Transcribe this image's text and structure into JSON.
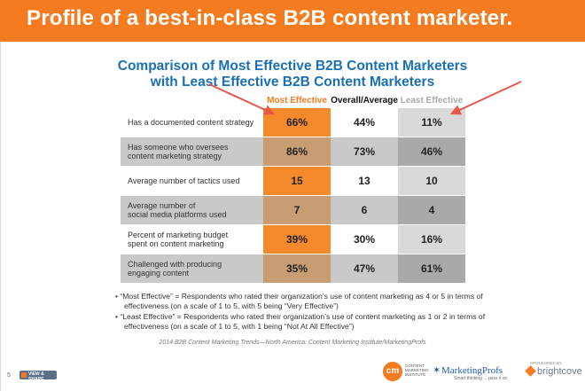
{
  "header": {
    "title": "Profile of a best-in-class B2B content marketer."
  },
  "subtitle": {
    "line1": "Comparison of Most Effective B2B Content Marketers",
    "line2": "with Least Effective B2B Content Marketers"
  },
  "table": {
    "columns": [
      "Most Effective",
      "Overall/Average",
      "Least Effective"
    ],
    "rows": [
      {
        "label_lines": [
          "Has a documented content strategy"
        ],
        "most": "66%",
        "avg": "44%",
        "least": "11%"
      },
      {
        "label_lines": [
          "Has someone who oversees",
          "content marketing strategy"
        ],
        "most": "86%",
        "avg": "73%",
        "least": "46%"
      },
      {
        "label_lines": [
          "Average number of tactics used"
        ],
        "most": "15",
        "avg": "13",
        "least": "10"
      },
      {
        "label_lines": [
          "Average number of",
          "social media platforms used"
        ],
        "most": "7",
        "avg": "6",
        "least": "4"
      },
      {
        "label_lines": [
          "Percent of marketing budget",
          "spent on content marketing"
        ],
        "most": "39%",
        "avg": "30%",
        "least": "16%"
      },
      {
        "label_lines": [
          "Challenged with producing",
          "engaging content"
        ],
        "most": "35%",
        "avg": "47%",
        "least": "61%"
      }
    ]
  },
  "notes": [
    "• “Most Effective” = Respondents who rated their organization’s use of content marketing as 4 or 5 in terms of effectiveness (on a scale of 1 to 5, with 5 being “Very Effective”)",
    "• “Least Effective” = Respondents who rated their organization’s use of content marketing as 1 or 2 in terms of effectiveness (on a scale of 1 to 5, with 1 being “Not At All Effective”)"
  ],
  "source": "2014 B2B Content Marketing Trends—North America: Content Marketing Institute/MarketingProfs",
  "footer": {
    "page_number": "5",
    "badge_label": "VIEW & SHARE",
    "cmi_mark": "cm",
    "cmi_text": "CONTENT MARKETING INSTITUTE",
    "mp_name": "MarketingProfs",
    "mp_tagline": "Smart thinking ... pass it on.",
    "sponsored_label": "SPONSORED BY",
    "bc_name": "brightcove"
  },
  "colors": {
    "banner": "#f47b20",
    "subtitle": "#1a6fb5",
    "most_effective": "#f58a2c",
    "arrow": "#e8584a"
  }
}
